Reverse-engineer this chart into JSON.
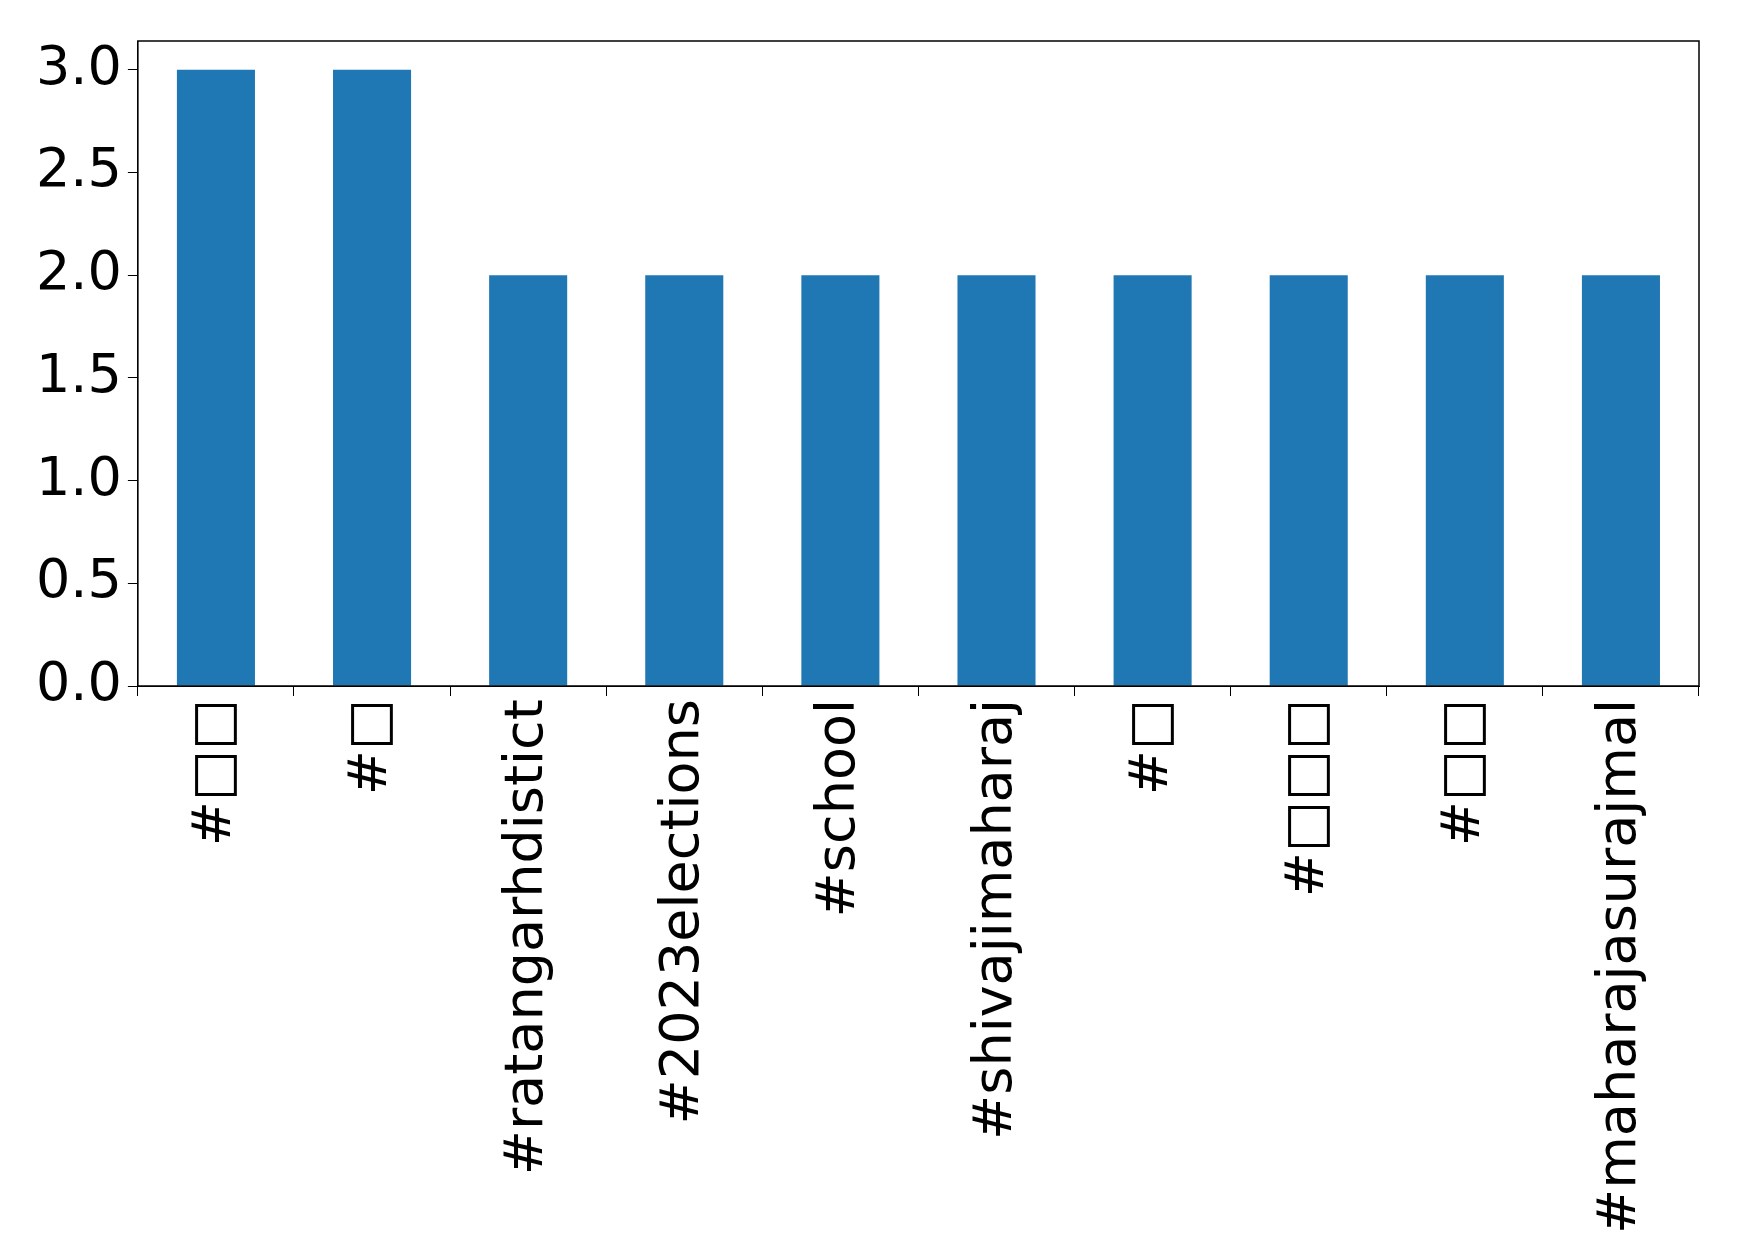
{
  "chart_data": {
    "type": "bar",
    "categories": [
      "#□□",
      "#□",
      "#ratangarhdistict",
      "#2023elections",
      "#school",
      "#shivajimaharaj",
      "#□",
      "#□□□",
      "#□□",
      "#maharajasurajmal"
    ],
    "values": [
      3,
      3,
      2,
      2,
      2,
      2,
      2,
      2,
      2,
      2
    ],
    "color": "#1f77b4",
    "ylim": [
      0,
      3.14
    ],
    "yticks": [
      {
        "value": 0,
        "label": "0.0"
      },
      {
        "value": 0.5,
        "label": "0.5"
      },
      {
        "value": 1,
        "label": "1.0"
      },
      {
        "value": 1.5,
        "label": "1.5"
      },
      {
        "value": 2,
        "label": "2.0"
      },
      {
        "value": 2.5,
        "label": "2.5"
      },
      {
        "value": 3,
        "label": "3.0"
      }
    ]
  }
}
